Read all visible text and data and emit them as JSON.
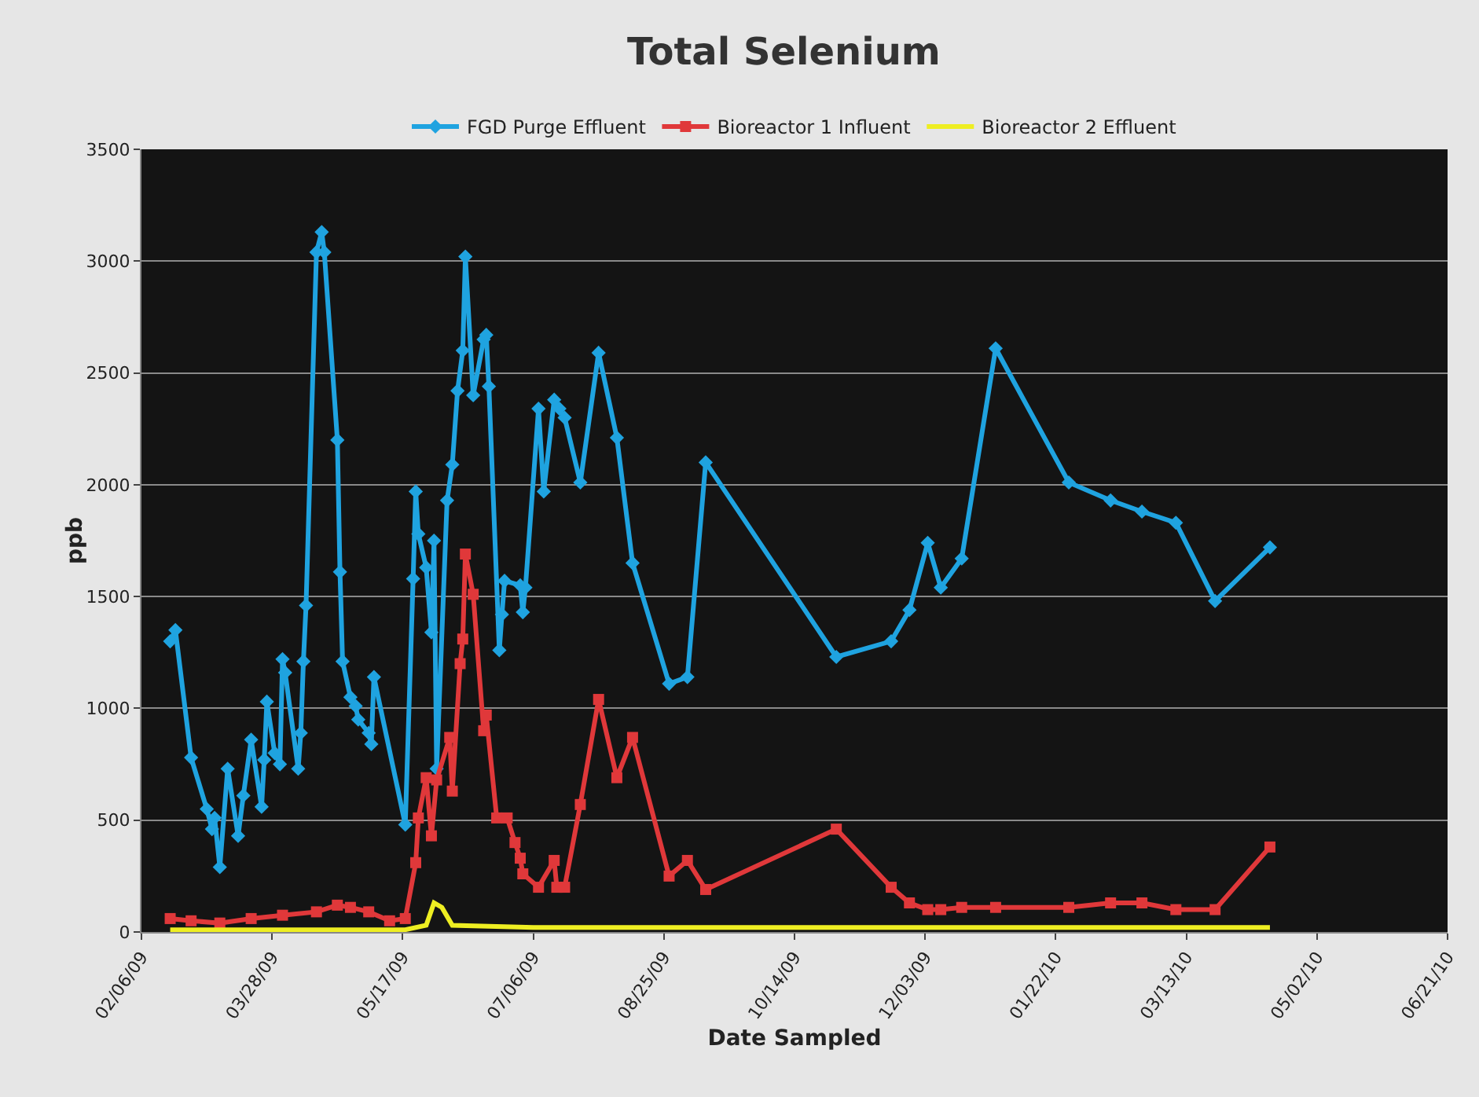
{
  "chart_data": {
    "type": "line",
    "title": "Total Selenium",
    "xlabel": "Date Sampled",
    "ylabel": "ppb",
    "xlim": [
      "2009-02-06",
      "2010-06-21"
    ],
    "xticks": [
      {
        "value": "2009-02-06",
        "label": "02/06/09"
      },
      {
        "value": "2009-03-28",
        "label": "03/28/09"
      },
      {
        "value": "2009-05-17",
        "label": "05/17/09"
      },
      {
        "value": "2009-07-06",
        "label": "07/06/09"
      },
      {
        "value": "2009-08-25",
        "label": "08/25/09"
      },
      {
        "value": "2009-10-14",
        "label": "10/14/09"
      },
      {
        "value": "2009-12-03",
        "label": "12/03/09"
      },
      {
        "value": "2010-01-22",
        "label": "01/22/10"
      },
      {
        "value": "2010-03-13",
        "label": "03/13/10"
      },
      {
        "value": "2010-05-02",
        "label": "05/02/10"
      },
      {
        "value": "2010-06-21",
        "label": "06/21/10"
      }
    ],
    "ylim": [
      0,
      3500
    ],
    "yticks": [
      0,
      500,
      1000,
      1500,
      2000,
      2500,
      3000,
      3500
    ],
    "grid": "y",
    "legend": "top",
    "line_style": "solid",
    "series": [
      {
        "name": "FGD Purge Effluent",
        "color": "#1fa3e0",
        "marker": "diamond",
        "x": [
          "2009-02-17",
          "2009-02-19",
          "2009-02-25",
          "2009-03-03",
          "2009-03-05",
          "2009-03-06",
          "2009-03-08",
          "2009-03-11",
          "2009-03-15",
          "2009-03-17",
          "2009-03-20",
          "2009-03-24",
          "2009-03-25",
          "2009-03-26",
          "2009-03-29",
          "2009-03-31",
          "2009-04-01",
          "2009-04-02",
          "2009-04-07",
          "2009-04-08",
          "2009-04-09",
          "2009-04-10",
          "2009-04-14",
          "2009-04-16",
          "2009-04-17",
          "2009-04-22",
          "2009-04-23",
          "2009-04-24",
          "2009-04-27",
          "2009-04-29",
          "2009-04-30",
          "2009-05-04",
          "2009-05-05",
          "2009-05-06",
          "2009-05-18",
          "2009-05-21",
          "2009-05-22",
          "2009-05-23",
          "2009-05-26",
          "2009-05-28",
          "2009-05-29",
          "2009-05-30",
          "2009-06-03",
          "2009-06-05",
          "2009-06-07",
          "2009-06-09",
          "2009-06-10",
          "2009-06-13",
          "2009-06-17",
          "2009-06-18",
          "2009-06-19",
          "2009-06-23",
          "2009-06-24",
          "2009-06-25",
          "2009-07-01",
          "2009-07-02",
          "2009-07-03",
          "2009-07-08",
          "2009-07-10",
          "2009-07-14",
          "2009-07-16",
          "2009-07-18",
          "2009-07-24",
          "2009-07-31",
          "2009-08-07",
          "2009-08-13",
          "2009-08-27",
          "2009-09-03",
          "2009-09-10",
          "2009-10-30",
          "2009-11-20",
          "2009-11-27",
          "2009-12-04",
          "2009-12-09",
          "2009-12-17",
          "2009-12-30",
          "2010-01-27",
          "2010-02-12",
          "2010-02-24",
          "2010-03-09",
          "2010-03-24",
          "2010-04-14"
        ],
        "values": [
          1300,
          1350,
          780,
          550,
          460,
          510,
          290,
          730,
          430,
          610,
          860,
          560,
          770,
          1030,
          800,
          750,
          1220,
          1160,
          730,
          890,
          1210,
          1460,
          3040,
          3130,
          3040,
          2200,
          1610,
          1210,
          1050,
          1010,
          950,
          890,
          840,
          1140,
          480,
          1580,
          1970,
          1780,
          1630,
          1340,
          1750,
          730,
          1930,
          2090,
          2420,
          2600,
          3020,
          2400,
          2650,
          2670,
          2440,
          1260,
          1420,
          1570,
          1550,
          1430,
          1540,
          2340,
          1970,
          2380,
          2340,
          2300,
          2010,
          2590,
          2210,
          1650,
          1110,
          1140,
          2100,
          1230,
          1300,
          1440,
          1740,
          1540,
          1670,
          2610,
          2010,
          1930,
          1880,
          1830,
          1480,
          1720
        ]
      },
      {
        "name": "Bioreactor 1 Influent",
        "color": "#e0383a",
        "marker": "square",
        "x": [
          "2009-02-17",
          "2009-02-25",
          "2009-03-08",
          "2009-03-20",
          "2009-04-01",
          "2009-04-14",
          "2009-04-22",
          "2009-04-27",
          "2009-05-04",
          "2009-05-12",
          "2009-05-18",
          "2009-05-22",
          "2009-05-23",
          "2009-05-26",
          "2009-05-28",
          "2009-05-30",
          "2009-06-04",
          "2009-06-05",
          "2009-06-08",
          "2009-06-09",
          "2009-06-10",
          "2009-06-13",
          "2009-06-17",
          "2009-06-18",
          "2009-06-22",
          "2009-06-26",
          "2009-06-29",
          "2009-07-01",
          "2009-07-02",
          "2009-07-08",
          "2009-07-14",
          "2009-07-15",
          "2009-07-18",
          "2009-07-24",
          "2009-07-31",
          "2009-08-07",
          "2009-08-13",
          "2009-08-27",
          "2009-09-03",
          "2009-09-10",
          "2009-10-30",
          "2009-11-20",
          "2009-11-27",
          "2009-12-04",
          "2009-12-09",
          "2009-12-17",
          "2009-12-30",
          "2010-01-27",
          "2010-02-12",
          "2010-02-24",
          "2010-03-09",
          "2010-03-24",
          "2010-04-14"
        ],
        "values": [
          60,
          50,
          40,
          60,
          75,
          90,
          120,
          110,
          90,
          50,
          60,
          310,
          510,
          690,
          430,
          680,
          870,
          630,
          1200,
          1310,
          1690,
          1510,
          900,
          970,
          510,
          510,
          400,
          330,
          260,
          200,
          320,
          200,
          200,
          570,
          1040,
          690,
          870,
          250,
          320,
          190,
          460,
          200,
          130,
          100,
          100,
          110,
          110,
          110,
          130,
          130,
          100,
          100,
          380
        ]
      },
      {
        "name": "Bioreactor 2 Effluent",
        "color": "#eeee22",
        "marker": "none",
        "x": [
          "2009-02-17",
          "2009-03-28",
          "2009-05-18",
          "2009-05-26",
          "2009-05-29",
          "2009-06-01",
          "2009-06-05",
          "2009-07-06",
          "2009-09-10",
          "2009-12-30",
          "2010-04-14"
        ],
        "values": [
          10,
          10,
          10,
          30,
          130,
          110,
          30,
          20,
          20,
          20,
          20
        ]
      }
    ]
  }
}
